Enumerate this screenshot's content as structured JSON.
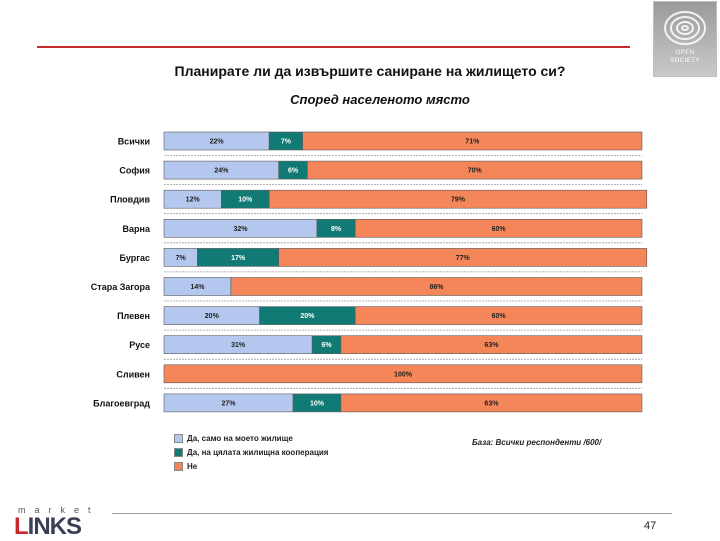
{
  "title": "Планирате ли да извършите саниране на жилището си?",
  "subtitle": "Според населеното място",
  "chart_data": {
    "type": "bar",
    "orientation": "horizontal",
    "stacked": true,
    "percent_axis": [
      0,
      100
    ],
    "categories": [
      "Всички",
      "София",
      "Пловдив",
      "Варна",
      "Бургас",
      "Стара Загора",
      "Плевен",
      "Русе",
      "Сливен",
      "Благоевград"
    ],
    "series": [
      {
        "name": "Да, само на моето жилище",
        "color": "#b4c7ee",
        "values": [
          22,
          24,
          12,
          32,
          7,
          14,
          20,
          31,
          0,
          27
        ],
        "labels": [
          "22%",
          "24%",
          "12%",
          "32%",
          "7%",
          "14%",
          "20%",
          "31%",
          "",
          "27%"
        ]
      },
      {
        "name": "Да, на цялата жилищна кооперация",
        "color": "#127a74",
        "values": [
          7,
          6,
          10,
          8,
          17,
          0,
          20,
          6,
          0,
          10
        ],
        "labels": [
          "7%",
          "6%",
          "10%",
          "8%",
          "17%",
          "",
          "20%",
          "6%",
          "",
          "10%"
        ]
      },
      {
        "name": "Не",
        "color": "#f4865a",
        "values": [
          71,
          70,
          79,
          60,
          77,
          86,
          60,
          63,
          100,
          63
        ],
        "labels": [
          "71%",
          "70%",
          "79%",
          "60%",
          "77%",
          "86%",
          "60%",
          "63%",
          "100%",
          "63%"
        ]
      }
    ]
  },
  "base_note": "База: Всички респонденти     /600/",
  "footer": {
    "brand_top": "market",
    "brand_main_first": "L",
    "brand_main_rest": "INKS",
    "page_number": "47"
  },
  "logo": {
    "line1": "OPEN",
    "line2": "SOCIETY"
  }
}
